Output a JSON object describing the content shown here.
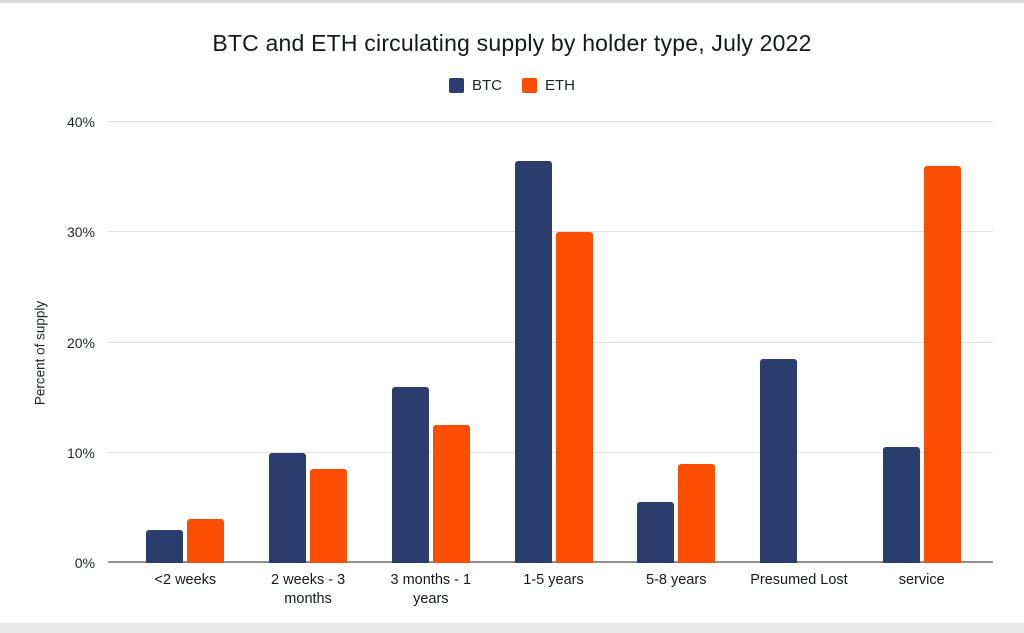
{
  "page": {
    "background": "#ffffff",
    "top_strip_color": "#d9d9d9",
    "bottom_strip_color": "#e9e9e9"
  },
  "chart_data": {
    "type": "bar",
    "title": "BTC and ETH circulating supply by holder type, July 2022",
    "xlabel": "",
    "ylabel": "Percent of supply",
    "categories": [
      "<2 weeks",
      "2 weeks - 3 months",
      "3 months - 1 years",
      "1-5 years",
      "5-8 years",
      "Presumed Lost",
      "service"
    ],
    "series": [
      {
        "name": "BTC",
        "color": "#2b3d6c",
        "values": [
          3,
          10,
          16,
          36.5,
          5.5,
          18.5,
          10.5
        ]
      },
      {
        "name": "ETH",
        "color": "#fc4e03",
        "values": [
          4,
          8.5,
          12.5,
          30,
          9,
          0,
          36
        ]
      }
    ],
    "ylim": [
      0,
      40
    ],
    "y_ticks": [
      "0%",
      "10%",
      "20%",
      "30%",
      "40%"
    ],
    "grid": true,
    "legend_position": "top",
    "grid_color": "#e2e2e2",
    "axis_line_color": "#8f8f8f"
  }
}
